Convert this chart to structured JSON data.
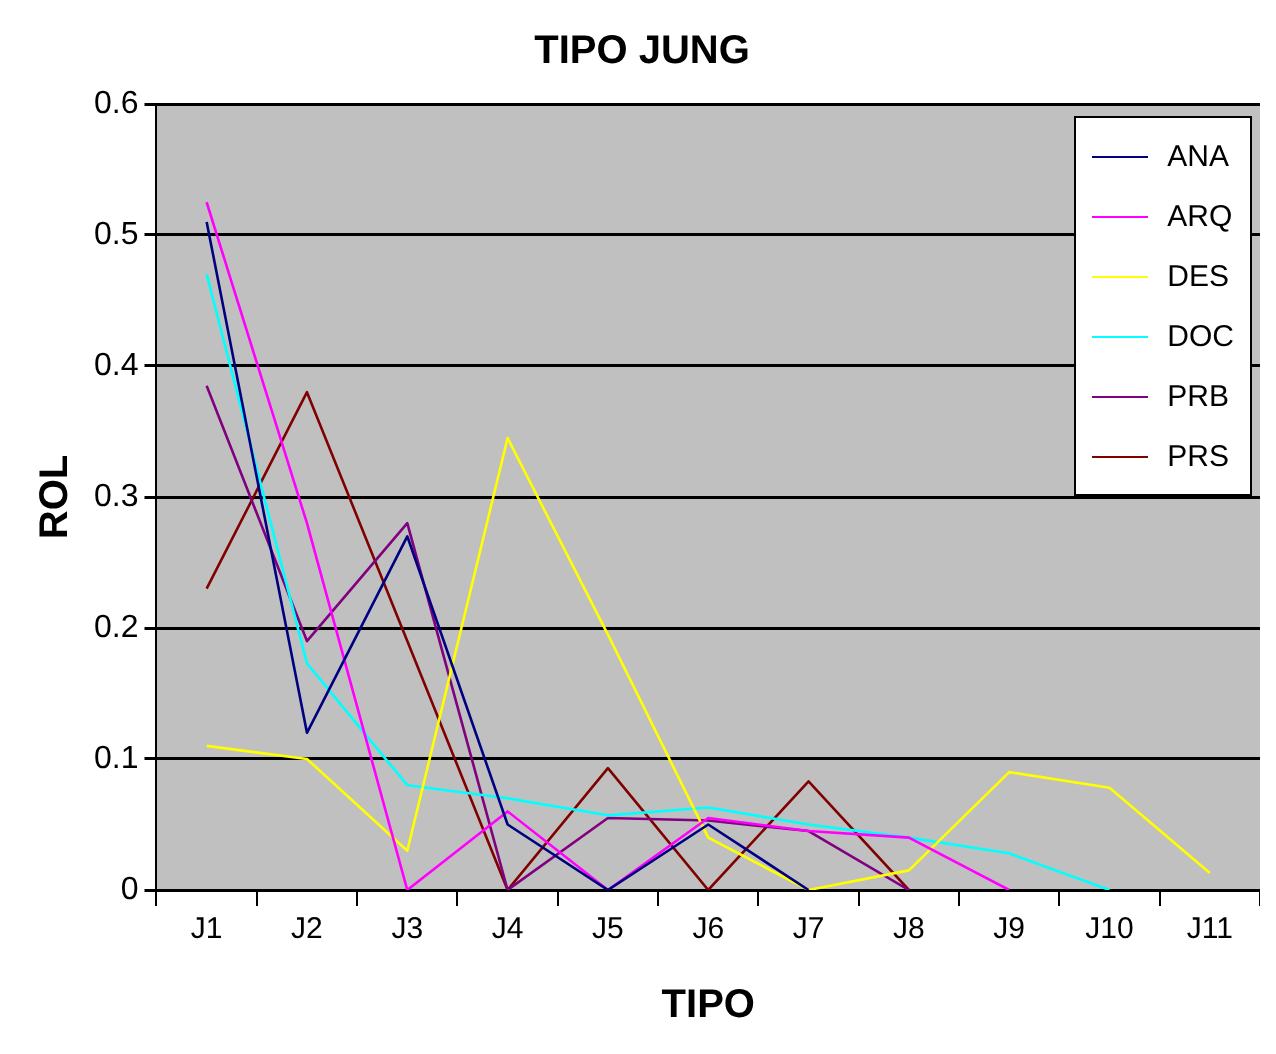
{
  "chart_data": {
    "type": "line",
    "title": "TIPO JUNG",
    "xlabel": "TIPO",
    "ylabel": "ROL",
    "categories": [
      "J1",
      "J2",
      "J3",
      "J4",
      "J5",
      "J6",
      "J7",
      "J8",
      "J9",
      "J10",
      "J11"
    ],
    "series": [
      {
        "name": "ANA",
        "color": "#000080",
        "values": [
          0.51,
          0.12,
          0.27,
          0.05,
          0,
          0.05,
          0,
          null,
          null,
          null,
          null
        ]
      },
      {
        "name": "ARQ",
        "color": "#ff00ff",
        "values": [
          0.525,
          0.28,
          0,
          0.06,
          0,
          0.055,
          0.045,
          0.04,
          0,
          null,
          null
        ]
      },
      {
        "name": "DES",
        "color": "#ffff00",
        "values": [
          0.11,
          0.1,
          0.03,
          0.345,
          0.195,
          0.04,
          0,
          0.015,
          0.09,
          0.078,
          0.013
        ]
      },
      {
        "name": "DOC",
        "color": "#00ffff",
        "values": [
          0.47,
          0.173,
          0.08,
          0.07,
          0.057,
          0.063,
          0.05,
          0.04,
          0.028,
          0,
          null
        ]
      },
      {
        "name": "PRB",
        "color": "#800080",
        "values": [
          0.385,
          0.19,
          0.28,
          0,
          0.055,
          0.053,
          0.045,
          0,
          null,
          null,
          null
        ]
      },
      {
        "name": "PRS",
        "color": "#800000",
        "values": [
          0.23,
          0.38,
          0.19,
          0,
          0.093,
          0,
          0.083,
          0,
          null,
          null,
          null
        ]
      }
    ],
    "ylim": [
      0,
      0.6
    ],
    "yticks": [
      0,
      0.1,
      0.2,
      0.3,
      0.4,
      0.5,
      0.6
    ],
    "grid": "y",
    "legend": "top right",
    "marker": "none",
    "line_style": "solid"
  }
}
